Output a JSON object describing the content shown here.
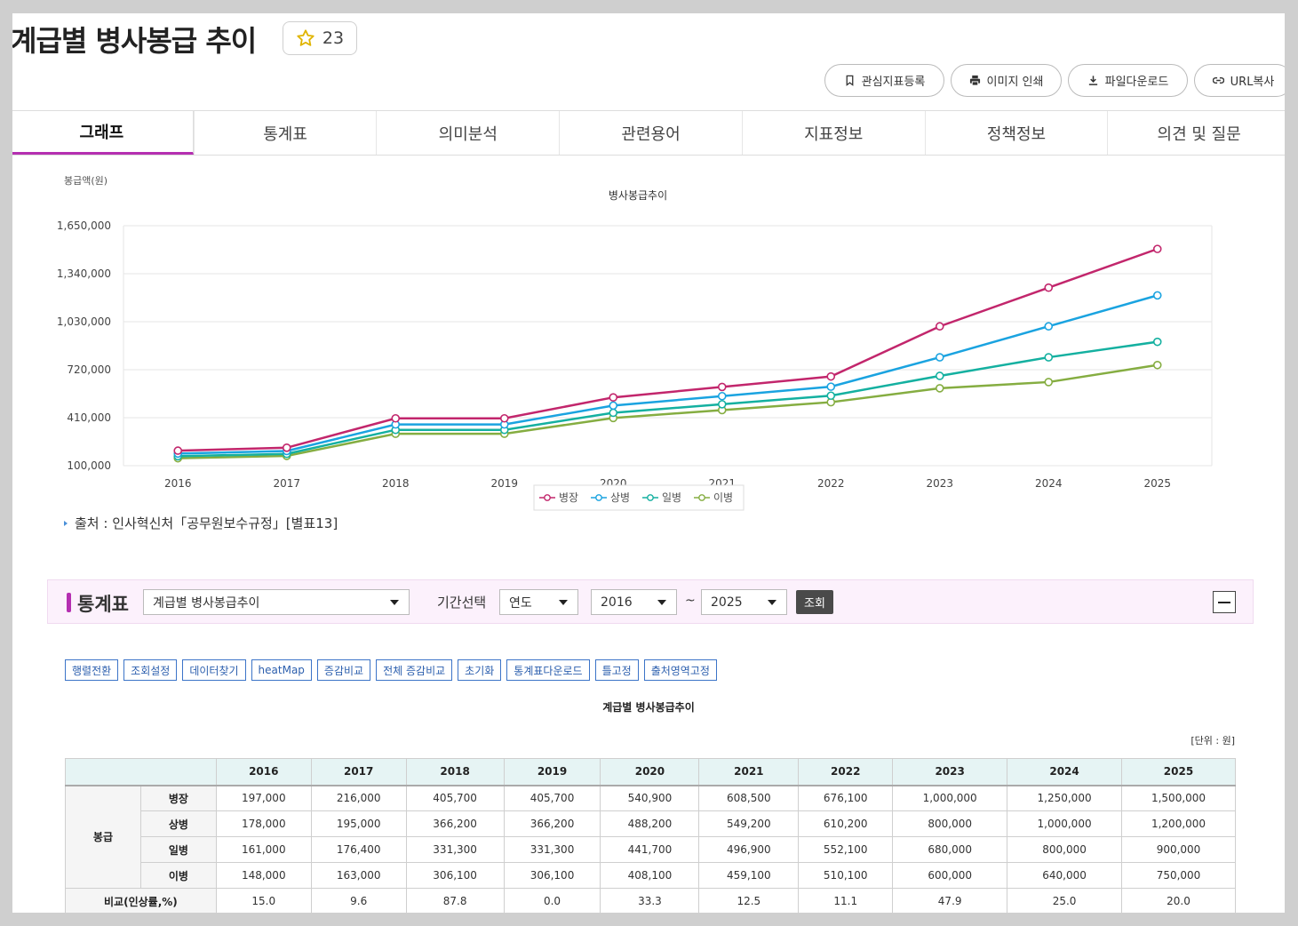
{
  "page_title": "계급별 병사봉급 추이",
  "favorite_count": "23",
  "actions": {
    "bookmark": "관심지표등록",
    "print": "이미지 인쇄",
    "download": "파일다운로드",
    "url_copy": "URL복사"
  },
  "tabs": [
    "그래프",
    "통계표",
    "의미분석",
    "관련용어",
    "지표정보",
    "정책정보",
    "의견 및 질문"
  ],
  "chart_data": {
    "type": "line",
    "title": "병사봉급추이",
    "ylabel": "봉급액(원)",
    "xlabel": "",
    "x": [
      "2016",
      "2017",
      "2018",
      "2019",
      "2020",
      "2021",
      "2022",
      "2023",
      "2024",
      "2025"
    ],
    "ylim": [
      100000,
      1650000
    ],
    "yticks": [
      "1,650,000",
      "1,340,000",
      "1,030,000",
      "720,000",
      "410,000",
      "100,000"
    ],
    "ytick_values": [
      1650000,
      1340000,
      1030000,
      720000,
      410000,
      100000
    ],
    "grid": true,
    "legend_position": "bottom",
    "series": [
      {
        "name": "병장",
        "color": "#c2266c",
        "values": [
          197000,
          216000,
          405700,
          405700,
          540900,
          608500,
          676100,
          1000000,
          1250000,
          1500000
        ]
      },
      {
        "name": "상병",
        "color": "#1aa3e0",
        "values": [
          178000,
          195000,
          366200,
          366200,
          488200,
          549200,
          610200,
          800000,
          1000000,
          1200000
        ]
      },
      {
        "name": "일병",
        "color": "#14b0a0",
        "values": [
          161000,
          176400,
          331300,
          331300,
          441700,
          496900,
          552100,
          680000,
          800000,
          900000
        ]
      },
      {
        "name": "이병",
        "color": "#85ad41",
        "values": [
          148000,
          163000,
          306100,
          306100,
          408100,
          459100,
          510100,
          600000,
          640000,
          750000
        ]
      }
    ]
  },
  "source": "출처 : 인사혁신처「공무원보수규정」[별표13]",
  "statbar": {
    "label": "통계표",
    "table_select": "계급별 병사봉급추이",
    "period_label": "기간선택",
    "period_unit": "연도",
    "from": "2016",
    "tilde": "~",
    "to": "2025",
    "query": "조회"
  },
  "tools": [
    "행렬전환",
    "조회설정",
    "데이터찾기",
    "heatMap",
    "증감비교",
    "전체 증감비교",
    "초기화",
    "통계표다운로드",
    "틀고정",
    "출처영역고정"
  ],
  "table": {
    "title": "계급별 병사봉급추이",
    "unit": "[단위 : 원]",
    "years": [
      "2016",
      "2017",
      "2018",
      "2019",
      "2020",
      "2021",
      "2022",
      "2023",
      "2024",
      "2025"
    ],
    "group_label": "봉급",
    "rows": [
      {
        "label": "병장",
        "values": [
          "197,000",
          "216,000",
          "405,700",
          "405,700",
          "540,900",
          "608,500",
          "676,100",
          "1,000,000",
          "1,250,000",
          "1,500,000"
        ]
      },
      {
        "label": "상병",
        "values": [
          "178,000",
          "195,000",
          "366,200",
          "366,200",
          "488,200",
          "549,200",
          "610,200",
          "800,000",
          "1,000,000",
          "1,200,000"
        ]
      },
      {
        "label": "일병",
        "values": [
          "161,000",
          "176,400",
          "331,300",
          "331,300",
          "441,700",
          "496,900",
          "552,100",
          "680,000",
          "800,000",
          "900,000"
        ]
      },
      {
        "label": "이병",
        "values": [
          "148,000",
          "163,000",
          "306,100",
          "306,100",
          "408,100",
          "459,100",
          "510,100",
          "600,000",
          "640,000",
          "750,000"
        ]
      }
    ],
    "compare_label": "비교(인상률,%)",
    "compare_values": [
      "15.0",
      "9.6",
      "87.8",
      "0.0",
      "33.3",
      "12.5",
      "11.1",
      "47.9",
      "25.0",
      "20.0"
    ]
  }
}
